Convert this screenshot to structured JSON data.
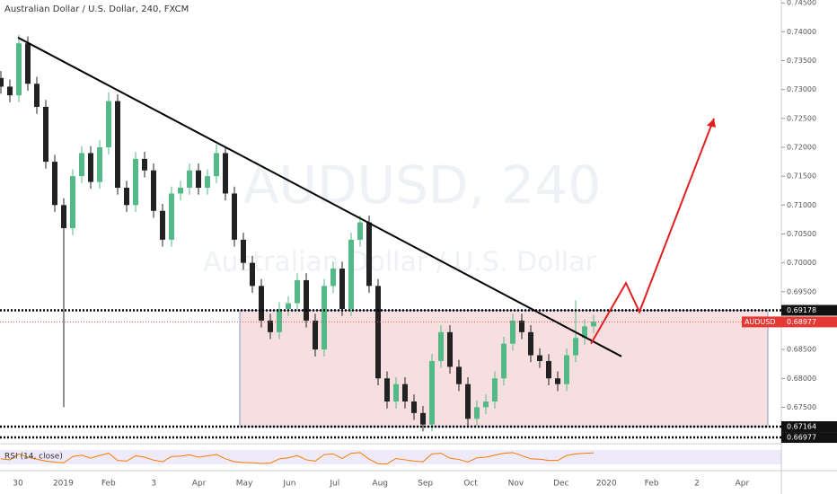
{
  "chart_data": {
    "type": "candlestick",
    "title": "Australian Dollar / U.S. Dollar, 240, FXCM",
    "watermark": "AUDUSD, 240",
    "watermark_sub": "Australian Dollar / U.S. Dollar",
    "symbol": "AUDUSD",
    "rsi_label": "RSI (14, close)",
    "ylim": [
      0.669,
      0.7455
    ],
    "yticks": [
      {
        "value": 0.745,
        "label": "0.74500"
      },
      {
        "value": 0.74,
        "label": "0.74000"
      },
      {
        "value": 0.735,
        "label": "0.73500"
      },
      {
        "value": 0.73,
        "label": "0.73000"
      },
      {
        "value": 0.725,
        "label": "0.72500"
      },
      {
        "value": 0.72,
        "label": "0.72000"
      },
      {
        "value": 0.715,
        "label": "0.71500"
      },
      {
        "value": 0.71,
        "label": "0.71000"
      },
      {
        "value": 0.705,
        "label": "0.70500"
      },
      {
        "value": 0.7,
        "label": "0.70000"
      },
      {
        "value": 0.695,
        "label": "0.69500"
      },
      {
        "value": 0.69,
        "label": "0.69000"
      },
      {
        "value": 0.685,
        "label": "0.68500"
      },
      {
        "value": 0.68,
        "label": "0.68000"
      },
      {
        "value": 0.675,
        "label": "0.67500"
      }
    ],
    "levels": [
      0.69178,
      0.67164,
      0.66977
    ],
    "last_price": 0.68977,
    "x_labels": [
      "30",
      "2019",
      "Feb",
      "3",
      "Apr",
      "May",
      "Jun",
      "Jul",
      "Aug",
      "Sep",
      "Oct",
      "Nov",
      "Dec",
      "2020",
      "Feb",
      "2",
      "Apr"
    ],
    "up_color": "#53b987",
    "down_color": "#222222",
    "open": [
      0.732,
      0.7305,
      0.729,
      0.738,
      0.731,
      0.727,
      0.7175,
      0.71,
      0.706,
      0.715,
      0.719,
      0.714,
      0.72,
      0.728,
      0.713,
      0.71,
      0.718,
      0.716,
      0.709,
      0.704,
      0.712,
      0.713,
      0.716,
      0.713,
      0.715,
      0.719,
      0.712,
      0.704,
      0.7,
      0.696,
      0.69,
      0.688,
      0.692,
      0.693,
      0.697,
      0.69,
      0.685,
      0.696,
      0.699,
      0.692,
      0.704,
      0.707,
      0.696,
      0.68,
      0.676,
      0.679,
      0.676,
      0.674,
      0.672,
      0.683,
      0.688,
      0.682,
      0.679,
      0.673,
      0.675,
      0.676,
      0.68,
      0.686,
      0.69,
      0.688,
      0.684,
      0.683,
      0.68,
      0.679,
      0.684,
      0.687,
      0.689
    ],
    "high": [
      0.7332,
      0.7317,
      0.7395,
      0.7392,
      0.7322,
      0.7282,
      0.7187,
      0.7112,
      0.7162,
      0.7202,
      0.7202,
      0.7212,
      0.7295,
      0.7292,
      0.7142,
      0.7192,
      0.7192,
      0.7172,
      0.7102,
      0.7132,
      0.7142,
      0.7172,
      0.7172,
      0.7162,
      0.7205,
      0.7202,
      0.7132,
      0.7052,
      0.7012,
      0.6972,
      0.6912,
      0.6932,
      0.6942,
      0.6982,
      0.6982,
      0.6912,
      0.6972,
      0.7002,
      0.7002,
      0.7052,
      0.7082,
      0.7082,
      0.6972,
      0.6812,
      0.6802,
      0.6802,
      0.6772,
      0.6752,
      0.6842,
      0.6892,
      0.6892,
      0.6832,
      0.6802,
      0.6762,
      0.6772,
      0.6812,
      0.6872,
      0.6912,
      0.6912,
      0.6892,
      0.6852,
      0.6842,
      0.6812,
      0.6852,
      0.6935,
      0.6902,
      0.691
    ],
    "low": [
      0.7293,
      0.7278,
      0.7278,
      0.7298,
      0.7258,
      0.7163,
      0.7088,
      0.675,
      0.7048,
      0.7138,
      0.7128,
      0.7128,
      0.7188,
      0.7118,
      0.7088,
      0.7088,
      0.7148,
      0.7078,
      0.7028,
      0.7028,
      0.7108,
      0.7118,
      0.7118,
      0.7118,
      0.7138,
      0.7108,
      0.7028,
      0.6988,
      0.6948,
      0.6888,
      0.6868,
      0.6868,
      0.6908,
      0.6918,
      0.6888,
      0.6838,
      0.6838,
      0.6948,
      0.6908,
      0.6908,
      0.7028,
      0.6948,
      0.6788,
      0.6748,
      0.6748,
      0.6748,
      0.6728,
      0.6708,
      0.6708,
      0.6818,
      0.6808,
      0.6778,
      0.6718,
      0.6718,
      0.6738,
      0.6748,
      0.6788,
      0.6848,
      0.6868,
      0.6828,
      0.6818,
      0.6788,
      0.6778,
      0.6778,
      0.6828,
      0.6858,
      0.6878
    ],
    "close": [
      0.7305,
      0.729,
      0.738,
      0.731,
      0.727,
      0.7175,
      0.71,
      0.706,
      0.715,
      0.719,
      0.714,
      0.72,
      0.728,
      0.713,
      0.71,
      0.718,
      0.716,
      0.709,
      0.704,
      0.712,
      0.713,
      0.716,
      0.713,
      0.715,
      0.719,
      0.712,
      0.704,
      0.7,
      0.696,
      0.69,
      0.688,
      0.692,
      0.693,
      0.697,
      0.69,
      0.685,
      0.696,
      0.699,
      0.692,
      0.704,
      0.707,
      0.696,
      0.68,
      0.676,
      0.679,
      0.676,
      0.674,
      0.672,
      0.683,
      0.688,
      0.682,
      0.679,
      0.673,
      0.675,
      0.676,
      0.68,
      0.686,
      0.69,
      0.688,
      0.684,
      0.683,
      0.68,
      0.679,
      0.684,
      0.687,
      0.689,
      0.6898
    ],
    "rsi_ylim": [
      20,
      80
    ],
    "rsi": [
      45,
      42,
      60,
      50,
      44,
      38,
      35,
      33,
      52,
      56,
      47,
      55,
      62,
      40,
      38,
      54,
      50,
      41,
      36,
      52,
      53,
      57,
      50,
      54,
      58,
      45,
      36,
      34,
      33,
      31,
      32,
      45,
      48,
      55,
      42,
      38,
      58,
      60,
      46,
      62,
      64,
      44,
      30,
      30,
      46,
      42,
      38,
      36,
      60,
      62,
      47,
      43,
      35,
      48,
      50,
      56,
      62,
      64,
      55,
      45,
      44,
      40,
      40,
      55,
      60,
      62,
      63
    ],
    "trendline": [
      0.739,
      0.6838
    ],
    "zone": [
      0.69178,
      0.67164
    ],
    "projection": [
      0.686,
      0.6965,
      0.6915,
      0.725
    ]
  }
}
